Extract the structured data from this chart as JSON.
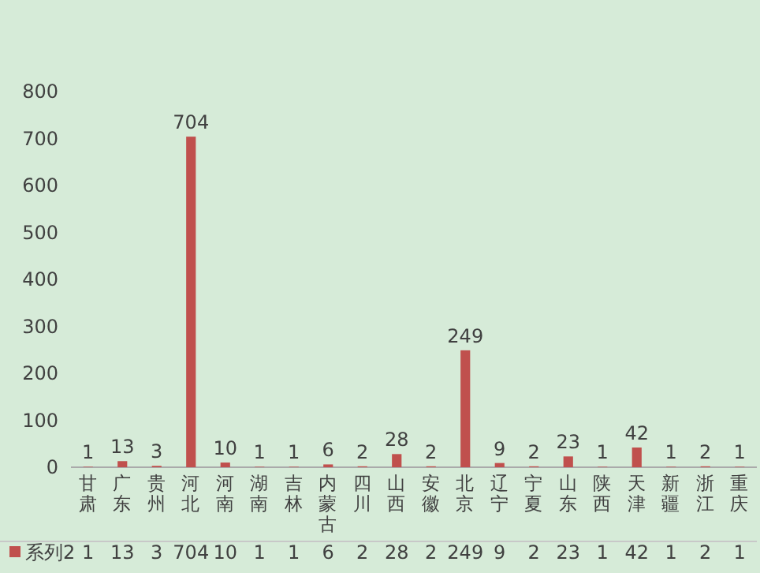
{
  "chart_data": {
    "type": "bar",
    "categories": [
      "甘肃",
      "广东",
      "贵州",
      "河北",
      "河南",
      "湖南",
      "吉林",
      "内蒙古",
      "四川",
      "山西",
      "安徽",
      "北京",
      "辽宁",
      "宁夏",
      "山东",
      "陕西",
      "天津",
      "新疆",
      "浙江",
      "重庆"
    ],
    "series": [
      {
        "name": "系列2",
        "color": "#c0504d",
        "values": [
          1,
          13,
          3,
          704,
          10,
          1,
          1,
          6,
          2,
          28,
          2,
          249,
          9,
          2,
          23,
          1,
          42,
          1,
          2,
          1
        ]
      }
    ],
    "ylim": [
      0,
      800
    ],
    "yticks": [
      0,
      100,
      200,
      300,
      400,
      500,
      600,
      700,
      800
    ],
    "data_labels": true,
    "legend": "bottom",
    "grid": false,
    "annotations": [
      {
        "text": "1",
        "x": "甘肃",
        "y": 1
      },
      {
        "text": "13",
        "x": "广东",
        "y": 13
      },
      {
        "text": "3",
        "x": "贵州",
        "y": 3
      },
      {
        "text": "704",
        "x": "河北",
        "y": 704
      },
      {
        "text": "10",
        "x": "河南",
        "y": 10
      },
      {
        "text": "1",
        "x": "湖南",
        "y": 1
      },
      {
        "text": "1",
        "x": "吉林",
        "y": 1
      },
      {
        "text": "6",
        "x": "内蒙古",
        "y": 6
      },
      {
        "text": "2",
        "x": "四川",
        "y": 2
      },
      {
        "text": "28",
        "x": "山西",
        "y": 28
      },
      {
        "text": "2",
        "x": "安徽",
        "y": 2
      },
      {
        "text": "249",
        "x": "北京",
        "y": 249
      },
      {
        "text": "9",
        "x": "辽宁",
        "y": 9
      },
      {
        "text": "2",
        "x": "宁夏",
        "y": 2
      },
      {
        "text": "23",
        "x": "山东",
        "y": 23
      },
      {
        "text": "1",
        "x": "陕西",
        "y": 1
      },
      {
        "text": "42",
        "x": "天津",
        "y": 42
      },
      {
        "text": "1",
        "x": "新疆",
        "y": 1
      },
      {
        "text": "2",
        "x": "浙江",
        "y": 2
      },
      {
        "text": "1",
        "x": "重庆",
        "y": 1
      }
    ]
  }
}
